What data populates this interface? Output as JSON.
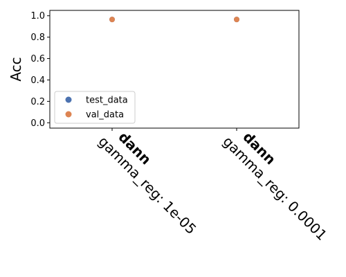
{
  "chart_data": {
    "type": "scatter",
    "ylabel": "Acc",
    "ylim": [
      -0.05,
      1.05
    ],
    "yticks": [
      "0.0",
      "0.2",
      "0.4",
      "0.6",
      "0.8",
      "1.0"
    ],
    "ytick_values": [
      0.0,
      0.2,
      0.4,
      0.6,
      0.8,
      1.0
    ],
    "categories": [
      {
        "method": "dann",
        "param": "gamma_reg: 1e-05"
      },
      {
        "method": "dann",
        "param": "gamma_reg: 0.0001"
      }
    ],
    "series": [
      {
        "name": "test_data",
        "color": "#4c72b0",
        "values": [
          0.965,
          0.965
        ]
      },
      {
        "name": "val_data",
        "color": "#dd8452",
        "values": [
          0.965,
          0.965
        ]
      }
    ],
    "legend": {
      "placement": "lower-left"
    },
    "grid": false
  }
}
